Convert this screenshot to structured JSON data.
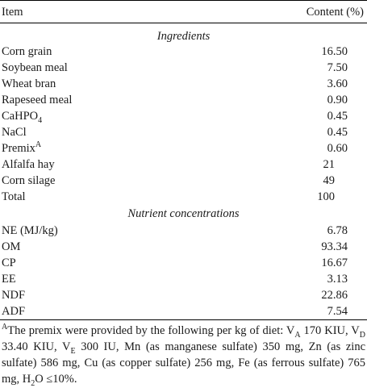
{
  "header": {
    "item": "Item",
    "content": "Content (%)"
  },
  "ingredients": {
    "title": "Ingredients",
    "rows": [
      {
        "label": "Corn grain",
        "value": "16.50"
      },
      {
        "label": "Soybean meal",
        "value": "7.50"
      },
      {
        "label": "Wheat bran",
        "value": "3.60"
      },
      {
        "label": "Rapeseed meal",
        "value": "0.90"
      },
      {
        "label": "CaHPO",
        "sub": "4",
        "value": "0.45"
      },
      {
        "label": "NaCl",
        "value": "0.45"
      },
      {
        "label": "Premix",
        "sup": "A",
        "value": "0.60"
      },
      {
        "label": "Alfalfa hay",
        "value": "21"
      },
      {
        "label": "Corn silage",
        "value": "49"
      },
      {
        "label": "Total",
        "value": "100"
      }
    ]
  },
  "nutrients": {
    "title": "Nutrient concentrations",
    "rows": [
      {
        "label": "NE (MJ/kg)",
        "value": "6.78"
      },
      {
        "label": "OM",
        "value": "93.34"
      },
      {
        "label": "CP",
        "value": "16.67"
      },
      {
        "label": "EE",
        "value": "3.13"
      },
      {
        "label": "NDF",
        "value": "22.86"
      },
      {
        "label": "ADF",
        "value": "7.54"
      }
    ]
  },
  "footnote": {
    "marker": "A",
    "p1": "The premix were provided by the following per kg of diet: V",
    "s1": "A",
    "p2": " 170 KIU, V",
    "s2": "D",
    "p3": " 33.40 KIU, V",
    "s3": "E",
    "p4": " 300 IU, Mn (as manganese sulfate) 350 mg, Zn (as zinc sulfate) 586 mg, Cu (as copper sulfate) 256 mg, Fe (as ferrous sulfate) 765 mg, H",
    "s4": "2",
    "p5": "O ≤10%."
  }
}
